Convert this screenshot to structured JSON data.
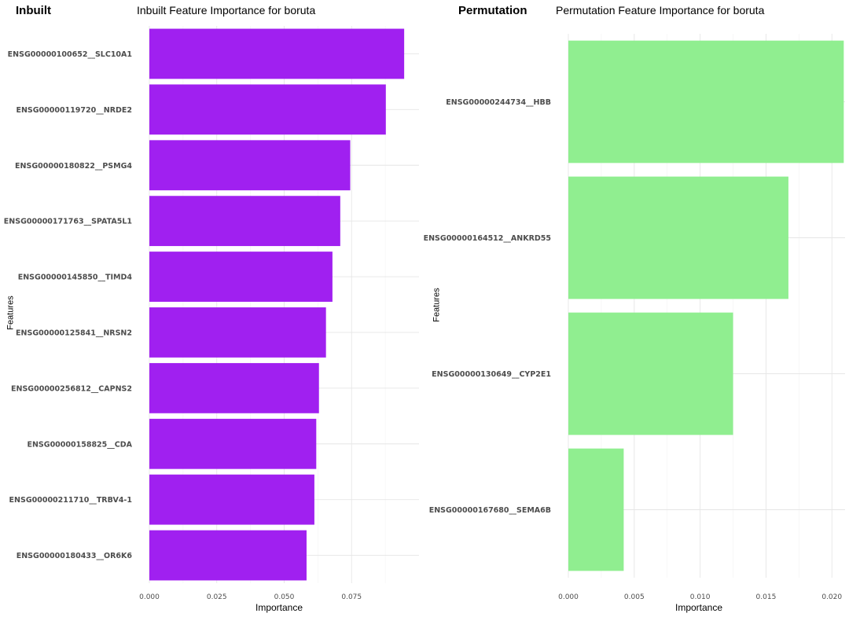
{
  "chart_data": [
    {
      "type": "bar",
      "orientation": "horizontal",
      "panel_tag": "Inbuilt",
      "title": "Inbuilt Feature Importance for boruta",
      "xlabel": "Importance",
      "ylabel": "Features",
      "xlim": [
        0,
        0.1
      ],
      "xticks": [
        0,
        0.025,
        0.05,
        0.075
      ],
      "xtick_labels": [
        "0.000",
        "0.025",
        "0.050",
        "0.075"
      ],
      "color": "#A020F0",
      "grid": true,
      "categories": [
        "ENSG00000100652__SLC10A1",
        "ENSG00000119720__NRDE2",
        "ENSG00000180822__PSMG4",
        "ENSG00000171763__SPATA5L1",
        "ENSG00000145850__TIMD4",
        "ENSG00000125841__NRSN2",
        "ENSG00000256812__CAPNS2",
        "ENSG00000158825__CDA",
        "ENSG00000211710__TRBV4-1",
        "ENSG00000180433__OR6K6"
      ],
      "values": [
        0.0945,
        0.0877,
        0.0745,
        0.0708,
        0.0679,
        0.0655,
        0.0629,
        0.0619,
        0.0612,
        0.0583
      ]
    },
    {
      "type": "bar",
      "orientation": "horizontal",
      "panel_tag": "Permutation",
      "title": "Permutation Feature Importance for boruta",
      "xlabel": "Importance",
      "ylabel": "Features",
      "xlim": [
        0,
        0.021
      ],
      "xticks": [
        0,
        0.005,
        0.01,
        0.015,
        0.02
      ],
      "xtick_labels": [
        "0.000",
        "0.005",
        "0.010",
        "0.015",
        "0.020"
      ],
      "color": "#90EE90",
      "grid": true,
      "categories": [
        "ENSG00000244734__HBB",
        "ENSG00000164512__ANKRD55",
        "ENSG00000130649__CYP2E1",
        "ENSG00000167680__SEMA6B"
      ],
      "values": [
        0.0209,
        0.0167,
        0.0125,
        0.0042
      ]
    }
  ]
}
